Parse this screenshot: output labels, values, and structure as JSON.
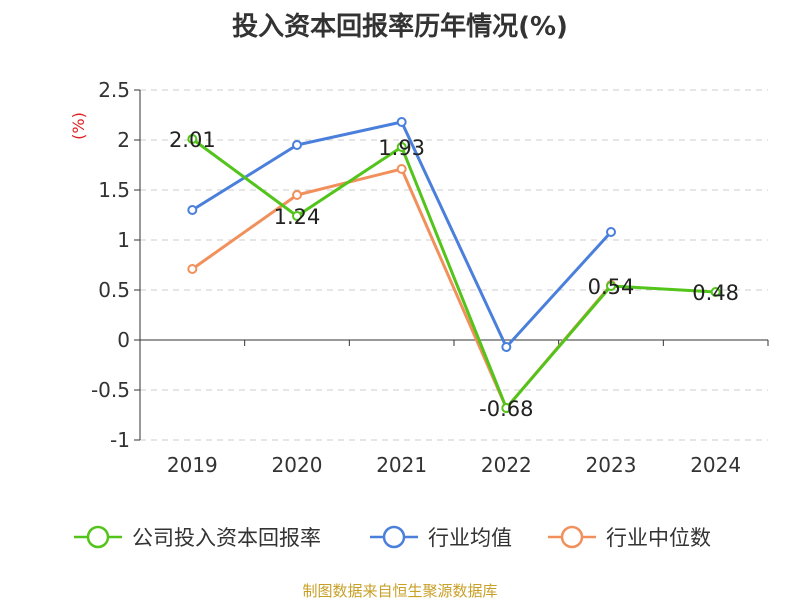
{
  "title": "投入资本回报率历年情况(%)",
  "source": "制图数据来自恒生聚源数据库",
  "chart_data": {
    "type": "line",
    "title": "投入资本回报率历年情况(%)",
    "ylabel": "(%)",
    "xlabel": "",
    "categories": [
      "2019",
      "2020",
      "2021",
      "2022",
      "2023",
      "2024"
    ],
    "ylim": [
      -1,
      2.5
    ],
    "yticks": [
      2.5,
      2,
      1.5,
      1,
      0.5,
      0,
      -0.5,
      -1
    ],
    "ytick_labels": [
      "2.5",
      "2",
      "1.5",
      "1",
      "0.5",
      "0",
      "-0.5",
      "-1"
    ],
    "grid": true,
    "legend_position": "bottom",
    "series": [
      {
        "name": "公司投入资本回报率",
        "color": "#52c41a",
        "values": [
          2.01,
          1.24,
          1.93,
          -0.68,
          0.54,
          0.48
        ],
        "labels": [
          "2.01",
          "1.24",
          "1.93",
          "-0.68",
          "0.54",
          "0.48"
        ]
      },
      {
        "name": "行业均值",
        "color": "#4a7fdc",
        "values": [
          1.3,
          1.95,
          2.18,
          -0.07,
          1.08,
          null
        ]
      },
      {
        "name": "行业中位数",
        "color": "#f2905c",
        "values": [
          0.71,
          1.45,
          1.71,
          -0.68,
          0.55,
          null
        ]
      }
    ]
  }
}
